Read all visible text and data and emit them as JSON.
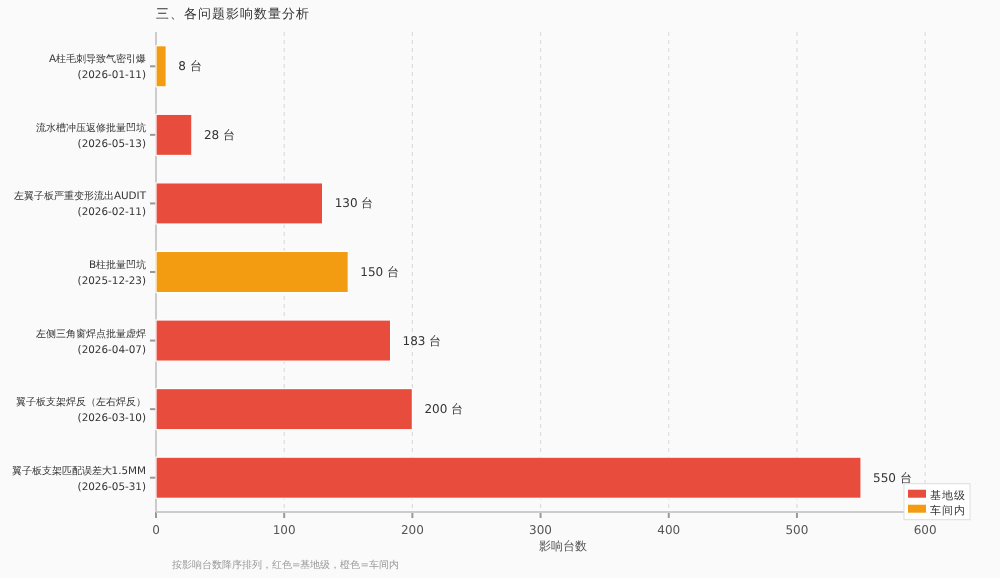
{
  "chart_data": {
    "type": "bar",
    "orientation": "horizontal",
    "title": "三、各问题影响数量分析",
    "xlabel": "影响台数",
    "categories": [
      "A柱毛刺导致气密引爆\n(2026-01-11)",
      "流水槽冲压返修批量凹坑\n(2026-05-13)",
      "左翼子板严重变形流出AUDIT\n(2026-02-11)",
      "B柱批量凹坑\n(2025-12-23)",
      "左侧三角窗焊点批量虚焊\n(2026-04-07)",
      "翼子板支架焊反（左右焊反）\n(2026-03-10)",
      "翼子板支架匹配误差大1.5MM\n(2026-05-31)"
    ],
    "series": [
      {
        "name": "基地级",
        "color": "#e74c3c",
        "values": [
          null,
          28,
          130,
          null,
          183,
          200,
          550
        ],
        "value_labels": [
          null,
          "28 台",
          "130 台",
          null,
          "183 台",
          "200 台",
          "550 台"
        ]
      },
      {
        "name": "车间内",
        "color": "#f39c12",
        "values": [
          8,
          null,
          null,
          150,
          null,
          null,
          null
        ],
        "value_labels": [
          "8 台",
          null,
          null,
          "150 台",
          null,
          null,
          null
        ]
      }
    ],
    "xlim": [
      0,
      635
    ],
    "xticks": [
      0,
      100,
      200,
      300,
      400,
      500,
      600
    ],
    "grid": "x",
    "legend": "bottom right",
    "annotations": [
      "按影响台数降序排列，红色=基地级，橙色=车间内"
    ]
  }
}
